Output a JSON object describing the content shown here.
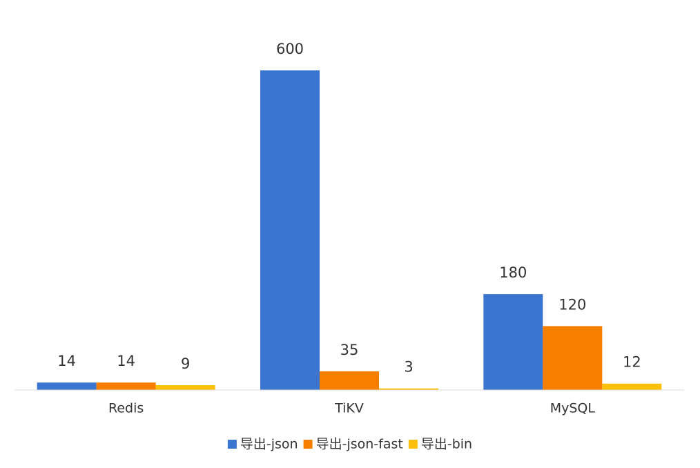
{
  "chart_data": {
    "type": "bar",
    "categories": [
      "Redis",
      "TiKV",
      "MySQL"
    ],
    "series": [
      {
        "name": "导出-json",
        "color": "#3a75d0",
        "values": [
          14,
          600,
          180
        ]
      },
      {
        "name": "导出-json-fast",
        "color": "#f77f00",
        "values": [
          14,
          35,
          120
        ]
      },
      {
        "name": "导出-bin",
        "color": "#fbc10a",
        "values": [
          9,
          3,
          12
        ]
      }
    ],
    "legend": "bottom"
  }
}
